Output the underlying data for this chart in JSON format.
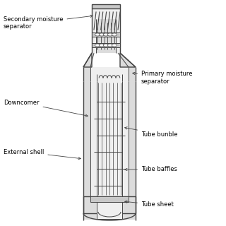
{
  "line_color": "#444444",
  "fill_gray_dark": "#aaaaaa",
  "fill_gray_med": "#c8c8c8",
  "fill_gray_light": "#dcdcdc",
  "fill_gray_vlight": "#efefef",
  "fill_white": "#ffffff",
  "labels": {
    "secondary_moisture": "Secondary moisture\nseparator",
    "primary_moisture": "Primary moisture\nseparator",
    "downcomer": "Downcomer",
    "tube_bundle": "Tube bunble",
    "external_shell": "External shell",
    "tube_baffles": "Tube baffles",
    "tube_sheet": "Tube sheet"
  },
  "font_size": 6.0
}
